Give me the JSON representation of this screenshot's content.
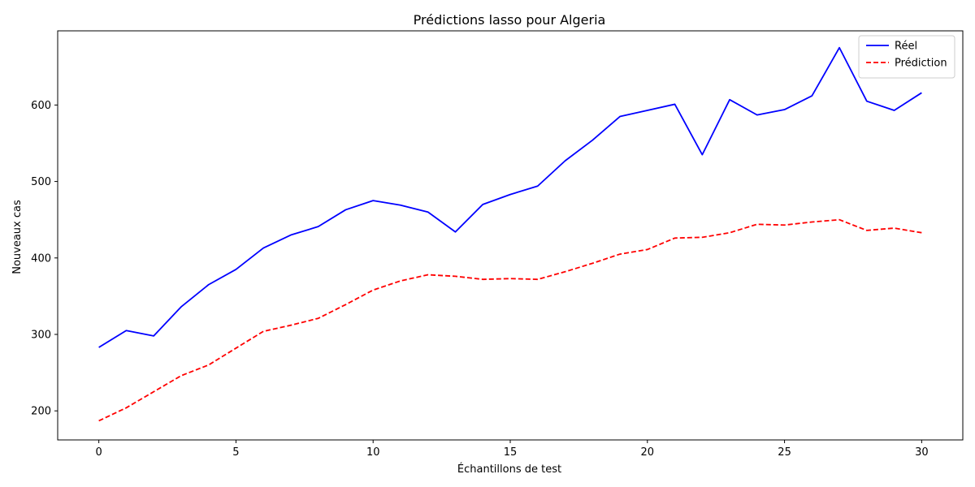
{
  "chart_data": {
    "type": "line",
    "title": "Prédictions lasso pour Algeria",
    "xlabel": "Échantillons de test",
    "ylabel": "Nouveaux cas",
    "xlim": [
      -1.5,
      31.5
    ],
    "ylim": [
      162,
      697
    ],
    "xticks": [
      0,
      5,
      10,
      15,
      20,
      25,
      30
    ],
    "yticks": [
      200,
      300,
      400,
      500,
      600
    ],
    "legend_position": "top-right",
    "grid": false,
    "x": [
      0,
      1,
      2,
      3,
      4,
      5,
      6,
      7,
      8,
      9,
      10,
      11,
      12,
      13,
      14,
      15,
      16,
      17,
      18,
      19,
      20,
      21,
      22,
      23,
      24,
      25,
      26,
      27,
      28,
      29,
      30
    ],
    "series": [
      {
        "name": "Réel",
        "color": "#0000ff",
        "style": "solid",
        "values": [
          283,
          305,
          298,
          336,
          365,
          385,
          413,
          430,
          441,
          463,
          475,
          469,
          460,
          434,
          470,
          483,
          494,
          527,
          554,
          585,
          593,
          601,
          535,
          607,
          587,
          594,
          612,
          675,
          605,
          593,
          616
        ]
      },
      {
        "name": "Prédiction",
        "color": "#ff0000",
        "style": "dashed",
        "values": [
          187,
          204,
          225,
          246,
          260,
          282,
          304,
          312,
          321,
          339,
          358,
          370,
          378,
          376,
          372,
          373,
          372,
          382,
          393,
          405,
          411,
          426,
          427,
          433,
          444,
          443,
          447,
          450,
          436,
          439,
          433
        ]
      }
    ]
  }
}
